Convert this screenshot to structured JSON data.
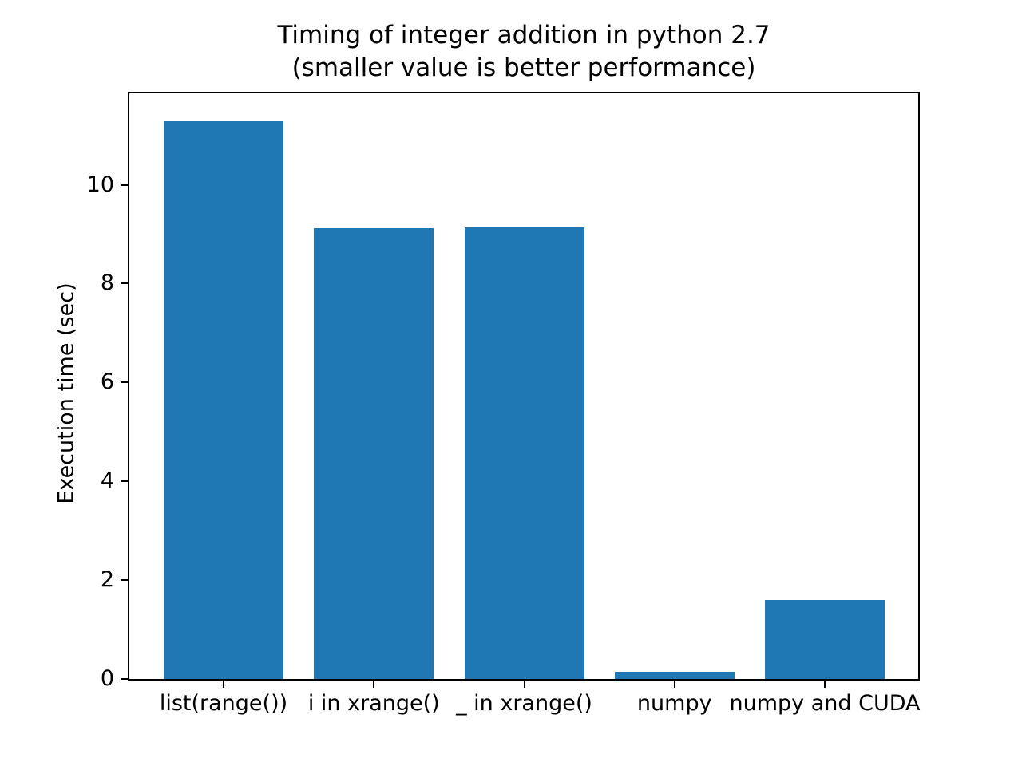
{
  "chart_data": {
    "type": "bar",
    "title": "Timing of integer addition in python 2.7",
    "subtitle": "(smaller value is better performance)",
    "ylabel": "Execution time (sec)",
    "xlabel": "",
    "categories": [
      "list(range())",
      "i in xrange()",
      "_ in xrange()",
      "numpy",
      "numpy and CUDA"
    ],
    "values": [
      11.28,
      9.12,
      9.14,
      0.14,
      1.6
    ],
    "yticks": [
      0,
      2,
      4,
      6,
      8,
      10
    ],
    "ylim": [
      0,
      11.85
    ],
    "bar_color": "#1f77b4",
    "axis_color": "#000000",
    "background_color": "#ffffff",
    "grid": false,
    "legend": "none"
  }
}
